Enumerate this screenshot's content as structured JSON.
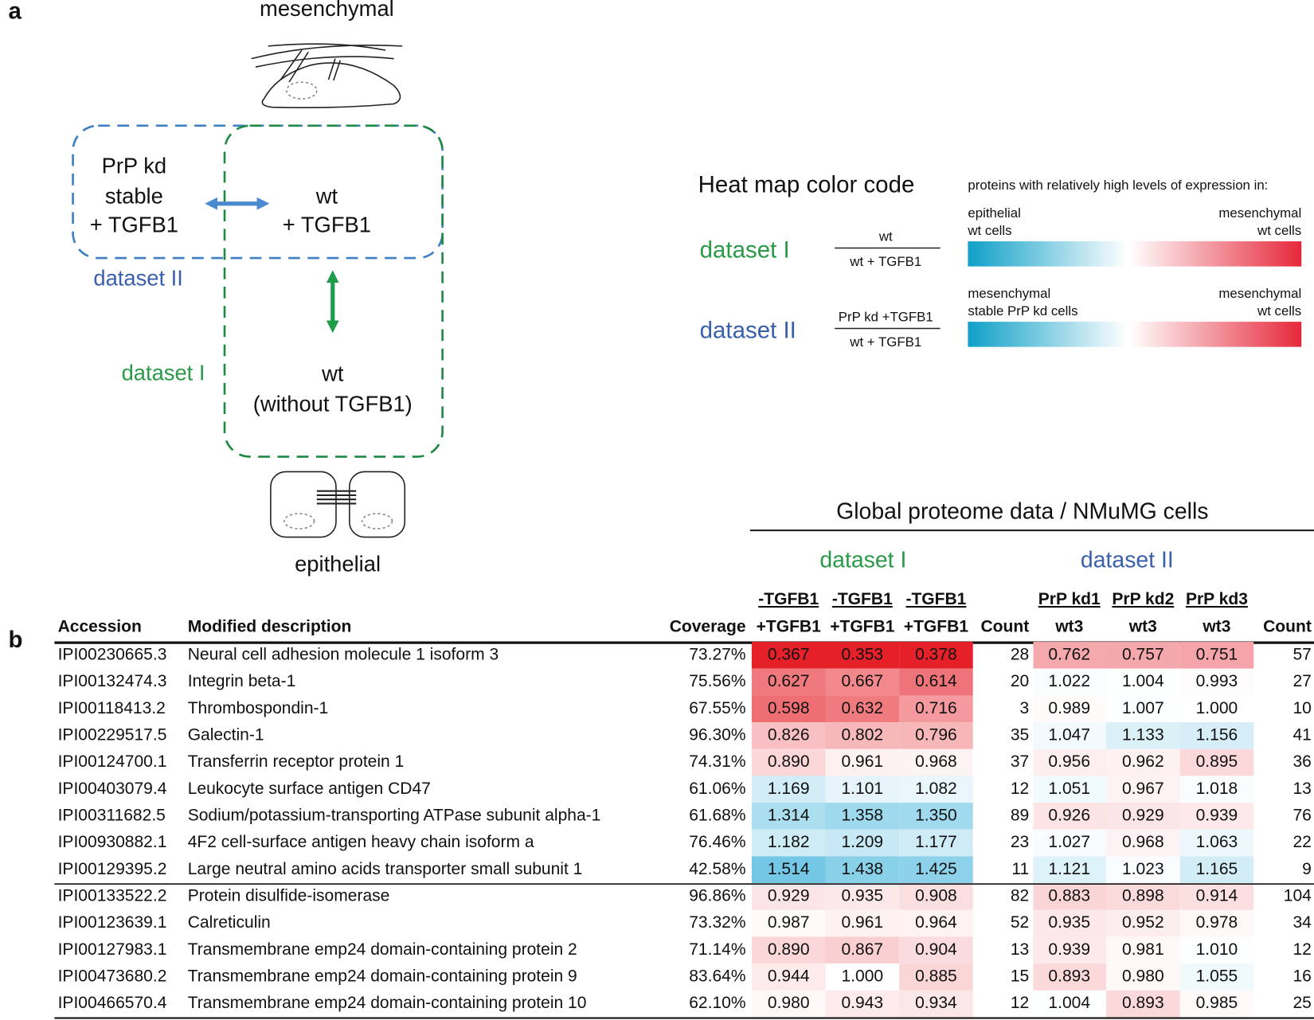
{
  "diagram": {
    "panel_label": "a",
    "top_cell": "mesenchymal",
    "bottom_cell": "epithelial",
    "box_kd": [
      "PrP kd",
      "stable",
      "+ TGFB1"
    ],
    "box_wt_tgfb": [
      "wt",
      "+ TGFB1"
    ],
    "box_wt": [
      "wt",
      "(without TGFB1)"
    ],
    "dataset_1": "dataset I",
    "dataset_2": "dataset II"
  },
  "legend": {
    "title": "Heat map color code",
    "subtitle": "proteins with relatively high levels of expression in:",
    "rows": [
      {
        "name": "dataset I",
        "numerator": "wt",
        "denominator": "wt + TGFB1",
        "left": [
          "epithelial",
          "wt cells"
        ],
        "right": [
          "mesenchymal",
          "wt cells"
        ]
      },
      {
        "name": "dataset II",
        "numerator": "PrP kd +TGFB1",
        "denominator": "wt + TGFB1",
        "left": [
          "mesenchymal",
          "stable PrP kd cells"
        ],
        "right": [
          "mesenchymal",
          "wt cells"
        ]
      }
    ]
  },
  "table": {
    "panel_label": "b",
    "title": "Global proteome data / NMuMG cells",
    "groups": [
      "dataset I",
      "dataset II"
    ],
    "header_top": [
      "-TGFB1",
      "-TGFB1",
      "-TGFB1",
      "PrP kd1",
      "PrP kd2",
      "PrP kd3"
    ],
    "columns": [
      "Accession",
      "Modified description",
      "Coverage",
      "+TGFB1",
      "+TGFB1",
      "+TGFB1",
      "Count",
      "wt3",
      "wt3",
      "wt3",
      "Count"
    ],
    "rows": [
      [
        "IPI00230665.3",
        "Neural cell adhesion molecule 1 isoform 3",
        "73.27%",
        "0.367",
        "0.353",
        "0.378",
        "28",
        "0.762",
        "0.757",
        "0.751",
        "57"
      ],
      [
        "IPI00132474.3",
        "Integrin beta-1",
        "75.56%",
        "0.627",
        "0.667",
        "0.614",
        "20",
        "1.022",
        "1.004",
        "0.993",
        "27"
      ],
      [
        "IPI00118413.2",
        "Thrombospondin-1",
        "67.55%",
        "0.598",
        "0.632",
        "0.716",
        "3",
        "0.989",
        "1.007",
        "1.000",
        "10"
      ],
      [
        "IPI00229517.5",
        "Galectin-1",
        "96.30%",
        "0.826",
        "0.802",
        "0.796",
        "35",
        "1.047",
        "1.133",
        "1.156",
        "41"
      ],
      [
        "IPI00124700.1",
        "Transferrin receptor protein 1",
        "74.31%",
        "0.890",
        "0.961",
        "0.968",
        "37",
        "0.956",
        "0.962",
        "0.895",
        "36"
      ],
      [
        "IPI00403079.4",
        "Leukocyte surface antigen CD47",
        "61.06%",
        "1.169",
        "1.101",
        "1.082",
        "12",
        "1.051",
        "0.967",
        "1.018",
        "13"
      ],
      [
        "IPI00311682.5",
        "Sodium/potassium-transporting ATPase subunit alpha-1",
        "61.68%",
        "1.314",
        "1.358",
        "1.350",
        "89",
        "0.926",
        "0.929",
        "0.939",
        "76"
      ],
      [
        "IPI00930882.1",
        "4F2 cell-surface antigen heavy chain isoform a",
        "76.46%",
        "1.182",
        "1.209",
        "1.177",
        "23",
        "1.027",
        "0.968",
        "1.063",
        "22"
      ],
      [
        "IPI00129395.2",
        "Large neutral amino acids transporter small subunit 1",
        "42.58%",
        "1.514",
        "1.438",
        "1.425",
        "11",
        "1.121",
        "1.023",
        "1.165",
        "9"
      ],
      [
        "IPI00133522.2",
        "Protein disulfide-isomerase",
        "96.86%",
        "0.929",
        "0.935",
        "0.908",
        "82",
        "0.883",
        "0.898",
        "0.914",
        "104"
      ],
      [
        "IPI00123639.1",
        "Calreticulin",
        "73.32%",
        "0.987",
        "0.961",
        "0.964",
        "52",
        "0.935",
        "0.952",
        "0.978",
        "34"
      ],
      [
        "IPI00127983.1",
        "Transmembrane emp24 domain-containing protein 2",
        "71.14%",
        "0.890",
        "0.867",
        "0.904",
        "13",
        "0.939",
        "0.981",
        "1.010",
        "12"
      ],
      [
        "IPI00473680.2",
        "Transmembrane emp24 domain-containing protein 9",
        "83.64%",
        "0.944",
        "1.000",
        "0.885",
        "15",
        "0.893",
        "0.980",
        "1.055",
        "16"
      ],
      [
        "IPI00466570.4",
        "Transmembrane emp24 domain-containing protein 10",
        "62.10%",
        "0.980",
        "0.943",
        "0.934",
        "12",
        "1.004",
        "0.893",
        "0.985",
        "25"
      ]
    ]
  }
}
